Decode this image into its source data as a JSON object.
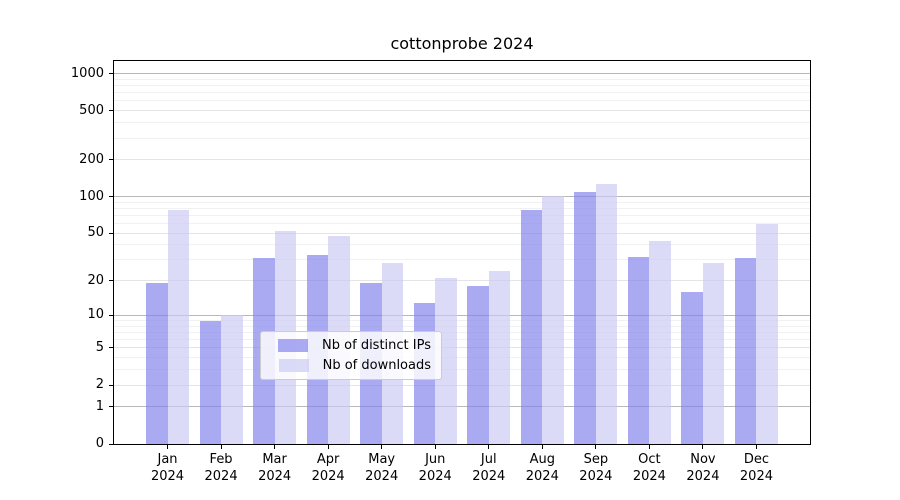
{
  "figure": {
    "background": "#ffffff"
  },
  "chart_data": {
    "type": "bar",
    "title": "cottonprobe 2024",
    "categories": [
      "Jan",
      "Feb",
      "Mar",
      "Apr",
      "May",
      "Jun",
      "Jul",
      "Aug",
      "Sep",
      "Oct",
      "Nov",
      "Dec"
    ],
    "category_year": "2024",
    "series": [
      {
        "key": "distinct-ips",
        "name": "Nb of distinct IPs",
        "values": [
          19,
          9,
          31,
          33,
          19,
          13,
          18,
          77,
          110,
          32,
          16,
          31
        ],
        "color": "rgba(129,129,237,0.68)"
      },
      {
        "key": "downloads",
        "name": "Nb of downloads",
        "values": [
          78,
          10,
          52,
          47,
          28,
          21,
          24,
          102,
          127,
          43,
          28,
          60
        ],
        "color": "rgba(202,202,245,0.68)"
      }
    ],
    "xlabel": "",
    "ylabel": "",
    "y_scale": "log1p",
    "ylim": [
      0,
      1266
    ],
    "y_ticks": [
      0,
      1,
      2,
      5,
      10,
      20,
      50,
      100,
      200,
      500,
      1000
    ],
    "y_decade_ticks": [
      1,
      10,
      100,
      1000
    ],
    "y_minor_gridlines": [
      3,
      4,
      6,
      7,
      8,
      9,
      30,
      40,
      60,
      70,
      80,
      90,
      300,
      400,
      600,
      700,
      800,
      900
    ],
    "grid": true,
    "legend_position": "lower center",
    "colors": {
      "decade_gridline": "#b8b8b8",
      "major_gridline": "#e4e4e4",
      "minor_gridline": "#f1f1f1",
      "axis": "#000000",
      "text": "#000000"
    }
  }
}
